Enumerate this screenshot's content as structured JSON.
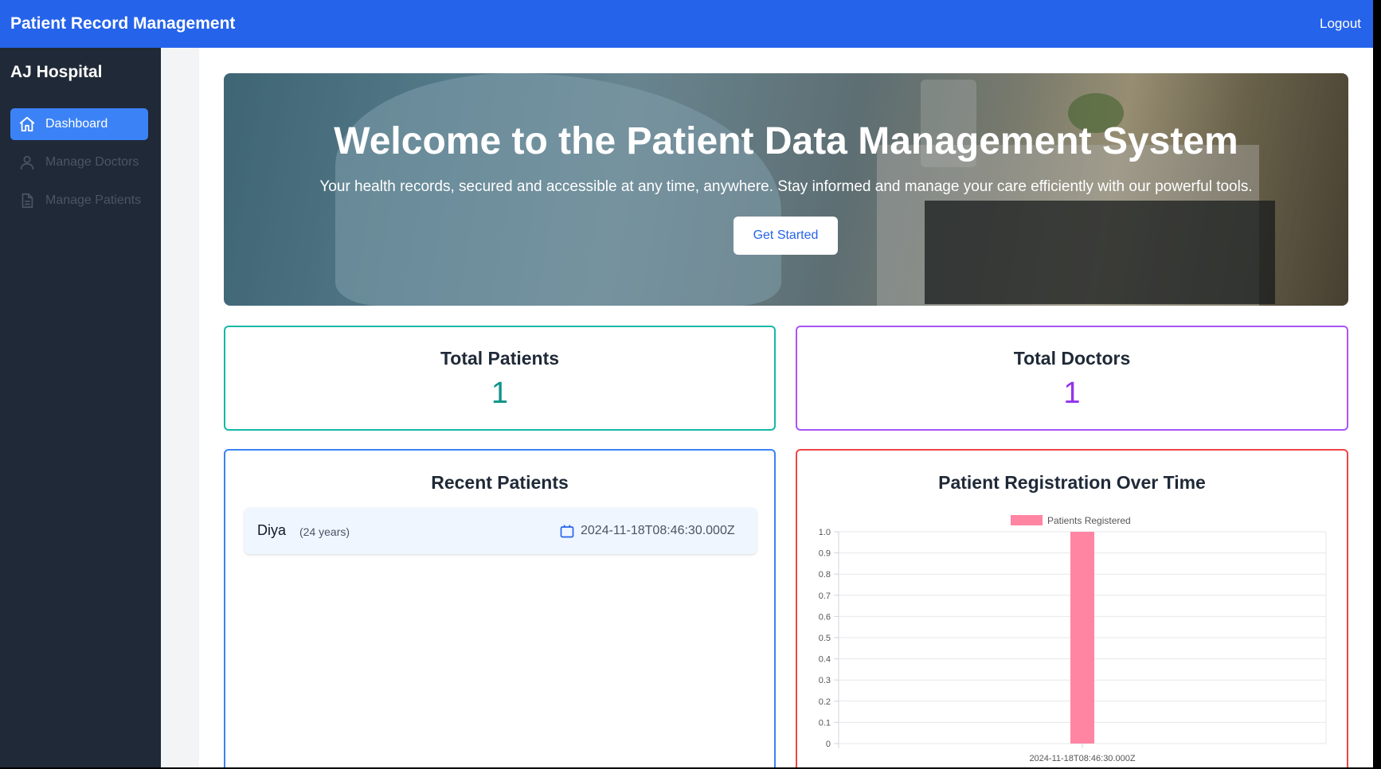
{
  "topbar": {
    "title": "Patient Record Management",
    "logout": "Logout"
  },
  "sidebar": {
    "hospital": "AJ Hospital",
    "items": [
      {
        "label": "Dashboard",
        "icon": "home-icon",
        "active": true
      },
      {
        "label": "Manage Doctors",
        "icon": "user-icon",
        "active": false
      },
      {
        "label": "Manage Patients",
        "icon": "document-icon",
        "active": false
      }
    ]
  },
  "hero": {
    "title": "Welcome to the Patient Data Management System",
    "subtitle": "Your health records, secured and accessible at any time, anywhere. Stay informed and manage your care efficiently with our powerful tools.",
    "button": "Get Started"
  },
  "stats": {
    "patients": {
      "label": "Total Patients",
      "value": "1",
      "color": "#0d9488"
    },
    "doctors": {
      "label": "Total Doctors",
      "value": "1",
      "color": "#9333ea"
    }
  },
  "recent": {
    "title": "Recent Patients",
    "patients": [
      {
        "name": "Diya",
        "age": "(24 years)",
        "date": "2024-11-18T08:46:30.000Z",
        "icon": "calendar-icon"
      }
    ]
  },
  "chart": {
    "title": "Patient Registration Over Time"
  },
  "chart_data": {
    "type": "bar",
    "title": "Patient Registration Over Time",
    "categories": [
      "2024-11-18T08:46:30.000Z"
    ],
    "series": [
      {
        "name": "Patients Registered",
        "values": [
          1
        ],
        "color": "#ff85a2"
      }
    ],
    "ylim": [
      0,
      1.0
    ],
    "yticks": [
      "0",
      "0.1",
      "0.2",
      "0.3",
      "0.4",
      "0.5",
      "0.6",
      "0.7",
      "0.8",
      "0.9",
      "1.0"
    ],
    "grid": true,
    "legend": "top-center"
  }
}
